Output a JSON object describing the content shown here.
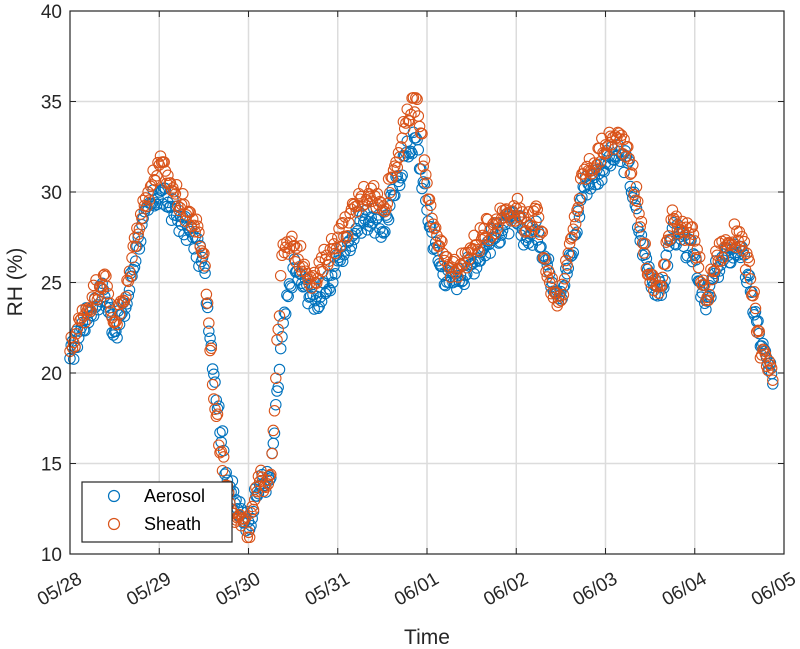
{
  "chart_data": {
    "type": "scatter",
    "xlabel": "Time",
    "ylabel": "RH (%)",
    "x_ticks": [
      "05/28",
      "05/29",
      "05/30",
      "05/31",
      "06/01",
      "06/02",
      "06/03",
      "06/04",
      "06/05"
    ],
    "xlim": [
      "05/28",
      "06/05"
    ],
    "ylim": [
      10,
      40
    ],
    "y_ticks": [
      10,
      15,
      20,
      25,
      30,
      35,
      40
    ],
    "grid": true,
    "legend_position": "bottom-left",
    "marker": "open-circle",
    "series": [
      {
        "name": "Aerosol",
        "color": "#0072BD",
        "points": [
          [
            "05/28 00:00",
            20.8
          ],
          [
            "05/28 03:00",
            22.5
          ],
          [
            "05/28 06:00",
            23.6
          ],
          [
            "05/28 09:00",
            24.6
          ],
          [
            "05/28 12:00",
            22.3
          ],
          [
            "05/28 15:00",
            23.6
          ],
          [
            "05/28 18:00",
            27.0
          ],
          [
            "05/28 21:00",
            29.0
          ],
          [
            "05/29 00:00",
            30.0
          ],
          [
            "05/29 03:00",
            29.2
          ],
          [
            "05/29 06:00",
            28.2
          ],
          [
            "05/29 09:00",
            27.5
          ],
          [
            "05/29 12:00",
            25.8
          ],
          [
            "05/29 15:00",
            19.5
          ],
          [
            "05/29 18:00",
            14.5
          ],
          [
            "05/29 21:00",
            12.5
          ],
          [
            "05/30 00:00",
            11.8
          ],
          [
            "05/30 03:00",
            13.8
          ],
          [
            "05/30 06:00",
            14.2
          ],
          [
            "05/30 09:00",
            22.0
          ],
          [
            "05/30 12:00",
            25.8
          ],
          [
            "05/30 15:00",
            24.8
          ],
          [
            "05/30 18:00",
            24.0
          ],
          [
            "05/30 21:00",
            24.5
          ],
          [
            "05/31 00:00",
            26.2
          ],
          [
            "05/31 03:00",
            27.3
          ],
          [
            "05/31 06:00",
            28.4
          ],
          [
            "05/31 09:00",
            28.6
          ],
          [
            "05/31 12:00",
            27.8
          ],
          [
            "05/31 15:00",
            29.8
          ],
          [
            "05/31 18:00",
            32.0
          ],
          [
            "05/31 21:00",
            33.0
          ],
          [
            "06/01 00:00",
            29.0
          ],
          [
            "06/01 03:00",
            26.2
          ],
          [
            "06/01 06:00",
            25.0
          ],
          [
            "06/01 09:00",
            25.4
          ],
          [
            "06/01 12:00",
            26.0
          ],
          [
            "06/01 15:00",
            26.8
          ],
          [
            "06/01 18:00",
            27.5
          ],
          [
            "06/01 21:00",
            28.2
          ],
          [
            "06/02 00:00",
            28.3
          ],
          [
            "06/02 03:00",
            27.5
          ],
          [
            "06/02 06:00",
            27.8
          ],
          [
            "06/02 09:00",
            25.5
          ],
          [
            "06/02 12:00",
            24.5
          ],
          [
            "06/02 15:00",
            26.5
          ],
          [
            "06/02 18:00",
            30.3
          ],
          [
            "06/02 21:00",
            30.8
          ],
          [
            "06/03 00:00",
            31.6
          ],
          [
            "06/03 03:00",
            32.0
          ],
          [
            "06/03 06:00",
            31.6
          ],
          [
            "06/03 09:00",
            27.8
          ],
          [
            "06/03 12:00",
            25.5
          ],
          [
            "06/03 15:00",
            24.3
          ],
          [
            "06/03 18:00",
            28.0
          ],
          [
            "06/03 21:00",
            27.0
          ],
          [
            "06/04 00:00",
            26.5
          ],
          [
            "06/04 03:00",
            23.5
          ],
          [
            "06/04 06:00",
            25.8
          ],
          [
            "06/04 09:00",
            26.5
          ],
          [
            "06/04 12:00",
            27.0
          ],
          [
            "06/04 15:00",
            24.5
          ],
          [
            "06/04 18:00",
            21.5
          ],
          [
            "06/04 21:00",
            19.4
          ]
        ]
      },
      {
        "name": "Sheath",
        "color": "#D95319",
        "points": [
          [
            "05/28 00:00",
            21.2
          ],
          [
            "05/28 03:00",
            23.0
          ],
          [
            "05/28 06:00",
            24.2
          ],
          [
            "05/28 09:00",
            25.4
          ],
          [
            "05/28 12:00",
            22.8
          ],
          [
            "05/28 15:00",
            24.2
          ],
          [
            "05/28 18:00",
            28.0
          ],
          [
            "05/28 21:00",
            30.0
          ],
          [
            "05/29 00:00",
            31.5
          ],
          [
            "05/29 03:00",
            30.5
          ],
          [
            "05/29 06:00",
            29.3
          ],
          [
            "05/29 09:00",
            28.5
          ],
          [
            "05/29 12:00",
            26.6
          ],
          [
            "05/29 15:00",
            18.0
          ],
          [
            "05/29 18:00",
            13.8
          ],
          [
            "05/29 21:00",
            12.0
          ],
          [
            "05/30 00:00",
            11.2
          ],
          [
            "05/30 03:00",
            14.0
          ],
          [
            "05/30 06:00",
            14.4
          ],
          [
            "05/30 09:00",
            26.5
          ],
          [
            "05/30 12:00",
            27.0
          ],
          [
            "05/30 15:00",
            26.0
          ],
          [
            "05/30 18:00",
            25.0
          ],
          [
            "05/30 21:00",
            26.5
          ],
          [
            "05/31 00:00",
            27.5
          ],
          [
            "05/31 03:00",
            28.3
          ],
          [
            "05/31 06:00",
            29.6
          ],
          [
            "05/31 09:00",
            30.2
          ],
          [
            "05/31 12:00",
            29.0
          ],
          [
            "05/31 15:00",
            31.2
          ],
          [
            "05/31 18:00",
            33.5
          ],
          [
            "05/31 21:00",
            35.2
          ],
          [
            "06/01 00:00",
            30.5
          ],
          [
            "06/01 03:00",
            27.0
          ],
          [
            "06/01 06:00",
            25.8
          ],
          [
            "06/01 09:00",
            26.0
          ],
          [
            "06/01 12:00",
            26.8
          ],
          [
            "06/01 15:00",
            27.6
          ],
          [
            "06/01 18:00",
            28.3
          ],
          [
            "06/01 21:00",
            29.0
          ],
          [
            "06/02 00:00",
            29.1
          ],
          [
            "06/02 03:00",
            28.3
          ],
          [
            "06/02 06:00",
            28.6
          ],
          [
            "06/02 09:00",
            25.0
          ],
          [
            "06/02 12:00",
            24.0
          ],
          [
            "06/02 15:00",
            27.5
          ],
          [
            "06/02 18:00",
            31.0
          ],
          [
            "06/02 21:00",
            31.6
          ],
          [
            "06/03 00:00",
            32.6
          ],
          [
            "06/03 03:00",
            33.0
          ],
          [
            "06/03 06:00",
            32.5
          ],
          [
            "06/03 09:00",
            28.8
          ],
          [
            "06/03 12:00",
            25.0
          ],
          [
            "06/03 15:00",
            24.8
          ],
          [
            "06/03 18:00",
            29.0
          ],
          [
            "06/03 21:00",
            27.8
          ],
          [
            "06/04 00:00",
            27.3
          ],
          [
            "06/04 03:00",
            24.0
          ],
          [
            "06/04 06:00",
            26.5
          ],
          [
            "06/04 09:00",
            27.2
          ],
          [
            "06/04 12:00",
            27.8
          ],
          [
            "06/04 15:00",
            25.2
          ],
          [
            "06/04 18:00",
            21.0
          ],
          [
            "06/04 21:00",
            19.6
          ]
        ]
      }
    ]
  }
}
